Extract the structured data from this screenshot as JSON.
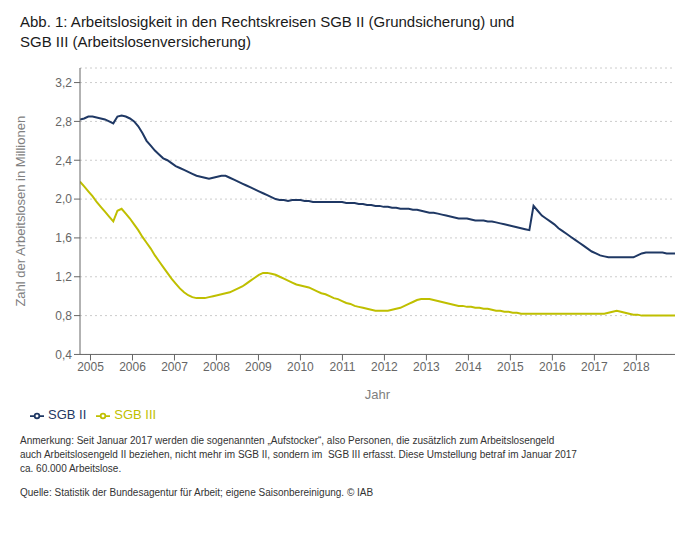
{
  "chart_data": {
    "type": "line",
    "title": "Abb. 1: Arbeitslosigkeit in den Rechtskreisen SGB II (Grundsicherung) und\nSGB III (Arbeitslosenversicherung)",
    "x_label": "Jahr",
    "y_label": "Zahl der Arbeitslosen in Millionen",
    "annotations": [
      "Anmerkung: Seit Januar 2017 werden die sogenannten „Aufstocker“, also Personen, die zusätzlich zum Arbeitslosengeld\nauch Arbeitslosengeld II beziehen, nicht mehr im SGB II, sondern im  SGB III erfasst. Diese Umstellung betraf im Januar 2017\nca. 60.000 Arbeitslose.",
      "Quelle: Statistik der Bundesagentur für Arbeit; eigene Saisonbereinigung. © IAB"
    ],
    "x": [
      2004.75,
      2004.8491,
      2004.9482,
      2005.0473,
      2005.1464,
      2005.2455,
      2005.3445,
      2005.4436,
      2005.5427,
      2005.6418,
      2005.7409,
      2005.84,
      2005.9391,
      2006.0382,
      2006.1373,
      2006.2364,
      2006.3355,
      2006.4345,
      2006.5336,
      2006.6327,
      2006.7318,
      2006.8309,
      2006.93,
      2007.0291,
      2007.1282,
      2007.2273,
      2007.3264,
      2007.4255,
      2007.5245,
      2007.6236,
      2007.7227,
      2007.8218,
      2007.9209,
      2008.02,
      2008.1191,
      2008.2182,
      2008.3173,
      2008.4164,
      2008.5155,
      2008.6145,
      2008.7136,
      2008.8127,
      2008.9118,
      2009.0109,
      2009.11,
      2009.2091,
      2009.3082,
      2009.4073,
      2009.5064,
      2009.6055,
      2009.7045,
      2009.8036,
      2009.9027,
      2010.0018,
      2010.1009,
      2010.2,
      2010.2991,
      2010.3982,
      2010.4973,
      2010.5964,
      2010.6955,
      2010.7945,
      2010.8936,
      2010.9927,
      2011.0918,
      2011.1909,
      2011.29,
      2011.3891,
      2011.4882,
      2011.5873,
      2011.6864,
      2011.7855,
      2011.8845,
      2011.9836,
      2012.0827,
      2012.1818,
      2012.2809,
      2012.38,
      2012.4791,
      2012.5782,
      2012.6773,
      2012.7764,
      2012.8755,
      2012.9745,
      2013.0736,
      2013.1727,
      2013.2718,
      2013.3709,
      2013.47,
      2013.5691,
      2013.6682,
      2013.7673,
      2013.8664,
      2013.9655,
      2014.0645,
      2014.1636,
      2014.2627,
      2014.3618,
      2014.4609,
      2014.56,
      2014.6591,
      2014.7582,
      2014.8573,
      2014.9564,
      2015.0555,
      2015.1545,
      2015.2536,
      2015.3527,
      2015.4518,
      2015.5509,
      2015.65,
      2015.7491,
      2015.8482,
      2015.9473,
      2016.0464,
      2016.1455,
      2016.2445,
      2016.3436,
      2016.4427,
      2016.5418,
      2016.6409,
      2016.74,
      2016.8391,
      2016.9382,
      2017.0373,
      2017.1364,
      2017.2355,
      2017.3345,
      2017.4336,
      2017.5327,
      2017.6318,
      2017.7309,
      2017.83,
      2017.9291,
      2018.0282,
      2018.1273,
      2018.2264,
      2018.3255,
      2018.4245,
      2018.5236,
      2018.6227,
      2018.7218,
      2018.8209,
      2018.92
    ],
    "series": [
      {
        "name": "SGB II",
        "color": "#1f3864",
        "values": [
          2.82,
          2.83,
          2.85,
          2.85,
          2.84,
          2.83,
          2.82,
          2.8,
          2.78,
          2.85,
          2.86,
          2.85,
          2.83,
          2.8,
          2.75,
          2.68,
          2.6,
          2.55,
          2.5,
          2.46,
          2.42,
          2.4,
          2.37,
          2.34,
          2.32,
          2.3,
          2.28,
          2.26,
          2.24,
          2.23,
          2.22,
          2.21,
          2.22,
          2.23,
          2.24,
          2.24,
          2.22,
          2.2,
          2.18,
          2.16,
          2.14,
          2.12,
          2.1,
          2.08,
          2.06,
          2.04,
          2.02,
          2.0,
          1.99,
          1.99,
          1.98,
          1.99,
          1.99,
          1.99,
          1.98,
          1.98,
          1.97,
          1.97,
          1.97,
          1.97,
          1.97,
          1.97,
          1.97,
          1.97,
          1.96,
          1.96,
          1.96,
          1.95,
          1.95,
          1.94,
          1.94,
          1.93,
          1.93,
          1.92,
          1.92,
          1.91,
          1.91,
          1.9,
          1.9,
          1.9,
          1.89,
          1.89,
          1.88,
          1.87,
          1.86,
          1.86,
          1.85,
          1.84,
          1.83,
          1.82,
          1.81,
          1.8,
          1.8,
          1.8,
          1.79,
          1.78,
          1.78,
          1.78,
          1.77,
          1.77,
          1.76,
          1.75,
          1.74,
          1.73,
          1.72,
          1.71,
          1.7,
          1.69,
          1.68,
          1.93,
          1.88,
          1.83,
          1.8,
          1.77,
          1.74,
          1.7,
          1.67,
          1.64,
          1.61,
          1.58,
          1.55,
          1.52,
          1.49,
          1.46,
          1.44,
          1.42,
          1.41,
          1.4,
          1.4,
          1.4,
          1.4,
          1.4,
          1.4,
          1.4,
          1.42,
          1.44,
          1.45,
          1.45,
          1.45,
          1.45,
          1.45,
          1.44,
          1.44,
          1.44
        ]
      },
      {
        "name": "SGB III",
        "color": "#bfbf00",
        "values": [
          2.18,
          2.13,
          2.08,
          2.03,
          1.97,
          1.92,
          1.87,
          1.82,
          1.77,
          1.88,
          1.9,
          1.85,
          1.8,
          1.74,
          1.68,
          1.61,
          1.55,
          1.49,
          1.42,
          1.36,
          1.3,
          1.24,
          1.18,
          1.13,
          1.08,
          1.04,
          1.01,
          0.99,
          0.98,
          0.98,
          0.98,
          0.99,
          1.0,
          1.01,
          1.02,
          1.03,
          1.04,
          1.06,
          1.08,
          1.1,
          1.13,
          1.16,
          1.19,
          1.22,
          1.24,
          1.24,
          1.23,
          1.22,
          1.2,
          1.18,
          1.16,
          1.14,
          1.12,
          1.11,
          1.1,
          1.09,
          1.07,
          1.05,
          1.03,
          1.02,
          1.0,
          0.98,
          0.97,
          0.95,
          0.93,
          0.92,
          0.9,
          0.89,
          0.88,
          0.87,
          0.86,
          0.85,
          0.85,
          0.85,
          0.85,
          0.86,
          0.87,
          0.88,
          0.9,
          0.92,
          0.94,
          0.96,
          0.97,
          0.97,
          0.97,
          0.96,
          0.95,
          0.94,
          0.93,
          0.92,
          0.91,
          0.9,
          0.9,
          0.89,
          0.89,
          0.88,
          0.88,
          0.87,
          0.87,
          0.86,
          0.85,
          0.85,
          0.84,
          0.84,
          0.83,
          0.83,
          0.82,
          0.82,
          0.82,
          0.82,
          0.82,
          0.82,
          0.82,
          0.82,
          0.82,
          0.82,
          0.82,
          0.82,
          0.82,
          0.82,
          0.82,
          0.82,
          0.82,
          0.82,
          0.82,
          0.82,
          0.82,
          0.83,
          0.84,
          0.85,
          0.84,
          0.83,
          0.82,
          0.81,
          0.81,
          0.8,
          0.8,
          0.8,
          0.8,
          0.8,
          0.8,
          0.8,
          0.8,
          0.8
        ]
      }
    ],
    "xlim": [
      2004.75,
      2018.92
    ],
    "xticks": [
      2005,
      2006,
      2007,
      2008,
      2009,
      2010,
      2011,
      2012,
      2013,
      2014,
      2015,
      2016,
      2017,
      2018
    ],
    "ylim": [
      0.4,
      3.35
    ],
    "yticks": [
      {
        "value": 0.4,
        "label": "0,4"
      },
      {
        "value": 0.8,
        "label": "0,8"
      },
      {
        "value": 1.2,
        "label": "1,2"
      },
      {
        "value": 1.6,
        "label": "1,6"
      },
      {
        "value": 2.0,
        "label": "2,0"
      },
      {
        "value": 2.4,
        "label": "2,4"
      },
      {
        "value": 2.8,
        "label": "2,8"
      },
      {
        "value": 3.2,
        "label": "3,2"
      }
    ],
    "grid": true,
    "legend": "bottom"
  }
}
